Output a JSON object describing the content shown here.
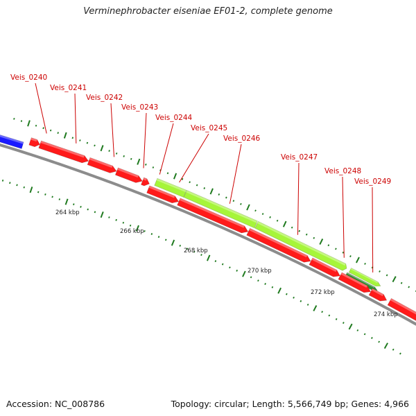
{
  "title": "Verminephrobacter eiseniae EF01-2, complete genome",
  "footer": {
    "accession": "Accession: NC_008786",
    "topology": "Topology: circular; Length: 5,566,749 bp; Genes: 4,966"
  },
  "colors": {
    "background": "#ffffff",
    "backbone": "#8c8c8c",
    "cds_forward": "#ff1a1a",
    "cds_reverse_other": "#1a1aff",
    "cds_highlight": "#a6f53a",
    "cds_highlight_dark": "#2e8b2e",
    "tick": "#1f7a1f",
    "gene_label": "#cc0000",
    "scale_label": "#222222"
  },
  "axis": {
    "unit": "kbp",
    "scale_labels": [
      {
        "kbp": 264,
        "text": "264 kbp"
      },
      {
        "kbp": 266,
        "text": "266 kbp"
      },
      {
        "kbp": 268,
        "text": "268 kbp"
      },
      {
        "kbp": 270,
        "text": "270 kbp"
      },
      {
        "kbp": 272,
        "text": "272 kbp"
      },
      {
        "kbp": 274,
        "text": "274 kbp"
      }
    ]
  },
  "genes": [
    {
      "label": "Veis_0240",
      "strand": "forward",
      "style": "red"
    },
    {
      "label": "Veis_0241",
      "strand": "forward",
      "style": "red"
    },
    {
      "label": "Veis_0242",
      "strand": "forward",
      "style": "red"
    },
    {
      "label": "Veis_0243",
      "strand": "forward",
      "style": "red"
    },
    {
      "label": "Veis_0244",
      "strand": "forward",
      "style": "red"
    },
    {
      "label": "Veis_0245",
      "strand": "forward",
      "style": "red"
    },
    {
      "label": "Veis_0246",
      "strand": "forward",
      "style": "highlight"
    },
    {
      "label": "Veis_0247",
      "strand": "forward",
      "style": "red"
    },
    {
      "label": "Veis_0248",
      "strand": "forward",
      "style": "red"
    },
    {
      "label": "Veis_0249",
      "strand": "forward",
      "style": "highlight-dark"
    }
  ]
}
